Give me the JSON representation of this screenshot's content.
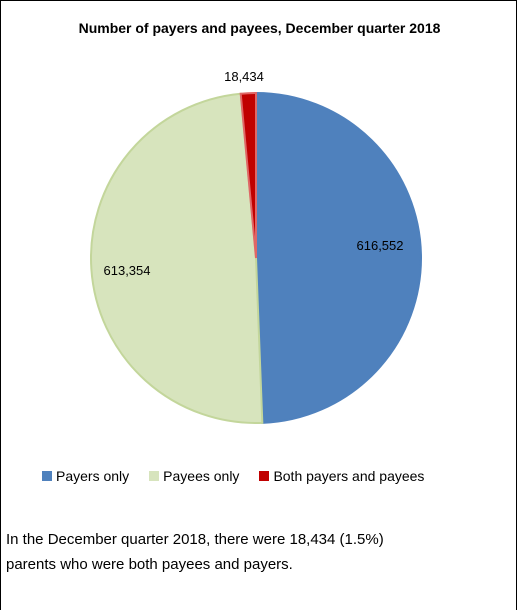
{
  "chart_data": {
    "type": "pie",
    "title": "Number of payers and payees, December quarter 2018",
    "categories": [
      "Payers only",
      "Payees only",
      "Both payers and payees"
    ],
    "values": [
      616552,
      613354,
      18434
    ],
    "data_labels": [
      "616,552",
      "613,354",
      "18,434"
    ],
    "colors": [
      "#4f81bd",
      "#d7e4bd",
      "#c00000"
    ],
    "edge_colors": [
      "#4f81bd",
      "#c3d69b",
      "#e06666"
    ],
    "legend_position": "bottom"
  },
  "note": {
    "line1": "In the December quarter 2018, there were 18,434 (1.5%)",
    "line2": "parents who were both payees and payers."
  }
}
